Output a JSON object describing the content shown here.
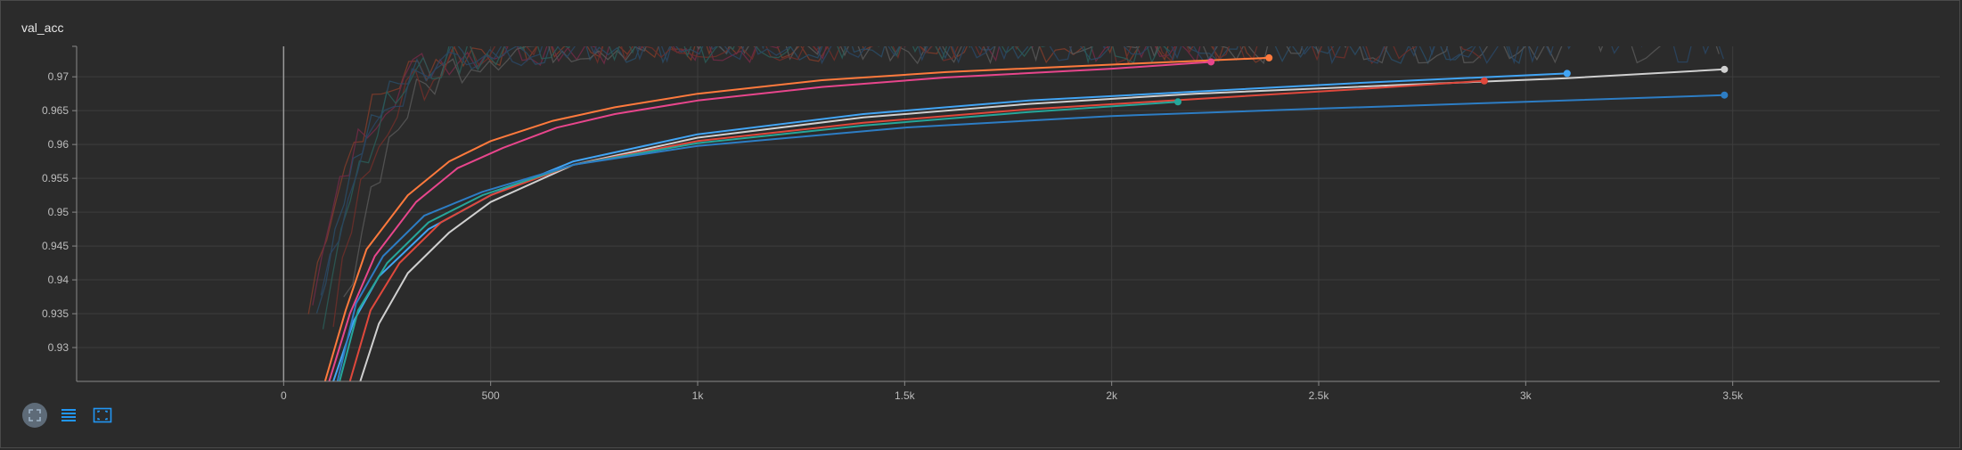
{
  "title": "val_acc",
  "colors": {
    "background": "#2b2b2b",
    "grid": "#3e3e3e",
    "axis": "#8a8a8a",
    "tick_text": "#bdbdbd",
    "toolbar_icon": "#2196f3"
  },
  "toolbar": {
    "icons": [
      "fullscreen-icon",
      "data-table-icon",
      "fit-domain-icon"
    ]
  },
  "chart_data": {
    "type": "line",
    "title": "val_acc",
    "xlabel": "",
    "ylabel": "",
    "xlim": [
      -500,
      4000
    ],
    "ylim": [
      0.925,
      0.9745
    ],
    "grid": true,
    "x_ticks": [
      0,
      500,
      1000,
      1500,
      2000,
      2500,
      3000,
      3500
    ],
    "x_tick_labels": [
      "0",
      "500",
      "1k",
      "1.5k",
      "2k",
      "2.5k",
      "3k",
      "3.5k"
    ],
    "y_ticks": [
      0.93,
      0.935,
      0.94,
      0.945,
      0.95,
      0.955,
      0.96,
      0.965,
      0.97
    ],
    "y_tick_labels": [
      "0.93",
      "0.935",
      "0.94",
      "0.945",
      "0.95",
      "0.955",
      "0.96",
      "0.965",
      "0.97"
    ],
    "series": [
      {
        "color": "#ff7a3d",
        "raw_color": "#7a3b2a",
        "x": [
          100,
          150,
          200,
          300,
          400,
          500,
          650,
          800,
          1000,
          1300,
          1600,
          2000,
          2380
        ],
        "y": [
          0.925,
          0.9355,
          0.9445,
          0.9525,
          0.9575,
          0.9605,
          0.9635,
          0.9655,
          0.9675,
          0.9695,
          0.9707,
          0.9718,
          0.9728
        ]
      },
      {
        "color": "#e8468c",
        "raw_color": "#6e2a45",
        "x": [
          110,
          160,
          220,
          320,
          420,
          530,
          660,
          800,
          1000,
          1300,
          1600,
          2000,
          2240
        ],
        "y": [
          0.925,
          0.935,
          0.9435,
          0.9515,
          0.9565,
          0.9595,
          0.9625,
          0.9645,
          0.9665,
          0.9685,
          0.9699,
          0.9712,
          0.9722
        ]
      },
      {
        "color": "#42a5f5",
        "raw_color": "#2a4a63",
        "x": [
          120,
          170,
          230,
          350,
          500,
          700,
          1000,
          1400,
          1800,
          2200,
          2600,
          3100
        ],
        "y": [
          0.925,
          0.934,
          0.9405,
          0.9475,
          0.9525,
          0.9575,
          0.9615,
          0.9645,
          0.9665,
          0.9678,
          0.9691,
          0.9705
        ]
      },
      {
        "color": "#d0d0d0",
        "raw_color": "#555555",
        "x": [
          185,
          230,
          300,
          400,
          500,
          700,
          1000,
          1400,
          1800,
          2200,
          2700,
          3100,
          3480
        ],
        "y": [
          0.925,
          0.9335,
          0.941,
          0.947,
          0.9515,
          0.957,
          0.961,
          0.964,
          0.966,
          0.9675,
          0.9688,
          0.9698,
          0.9711
        ]
      },
      {
        "color": "#e0483c",
        "raw_color": "#6b2f2a",
        "x": [
          160,
          210,
          280,
          380,
          500,
          700,
          1000,
          1400,
          1800,
          2200,
          2600,
          2900
        ],
        "y": [
          0.925,
          0.9355,
          0.9425,
          0.9485,
          0.9525,
          0.957,
          0.9605,
          0.9632,
          0.9652,
          0.9667,
          0.9682,
          0.9694
        ]
      },
      {
        "color": "#26a69a",
        "raw_color": "#2a5a55",
        "x": [
          135,
          180,
          250,
          350,
          480,
          700,
          1000,
          1400,
          1800,
          2160
        ],
        "y": [
          0.925,
          0.9355,
          0.9425,
          0.9485,
          0.9525,
          0.957,
          0.9602,
          0.9628,
          0.9648,
          0.9663
        ]
      },
      {
        "color": "#2d7dc4",
        "raw_color": "#2a4560",
        "x": [
          130,
          175,
          240,
          340,
          480,
          700,
          1000,
          1500,
          2000,
          2500,
          3000,
          3480
        ],
        "y": [
          0.925,
          0.9365,
          0.9435,
          0.9495,
          0.953,
          0.957,
          0.9598,
          0.9625,
          0.9642,
          0.9653,
          0.9663,
          0.9673
        ]
      }
    ],
    "smoothing_note": ""
  }
}
